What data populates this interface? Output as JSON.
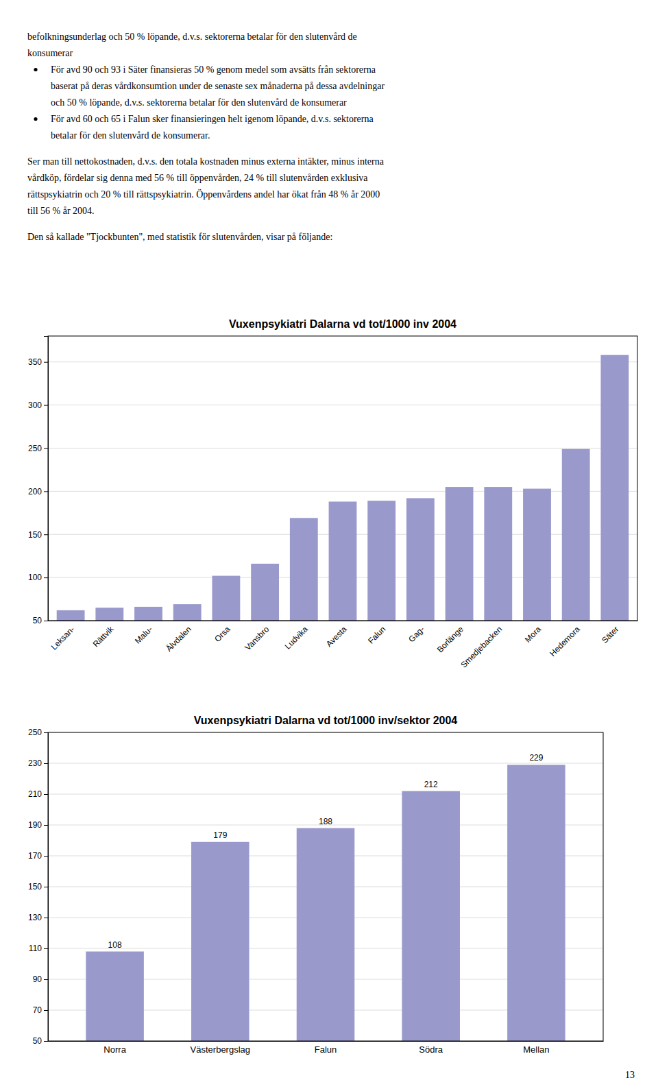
{
  "text": [
    {
      "type": "paragraph",
      "lines": [
        "befolkningsunderlag och 50 % löpande, d.v.s. sektorerna betalar för den slutenvård de",
        "konsumerar"
      ]
    },
    {
      "type": "bullet",
      "lines": [
        "För avd 90 och 93 i Säter finansieras 50 % genom medel som avsätts från sektorerna",
        "baserat på deras vårdkonsumtion under de senaste sex månaderna på dessa avdelningar",
        "och 50 % löpande, d.v.s. sektorerna betalar för den slutenvård de konsumerar"
      ]
    },
    {
      "type": "bullet",
      "lines": [
        "För avd 60 och 65 i Falun sker finansieringen helt igenom löpande, d.v.s. sektorerna",
        "betalar för den slutenvård de konsumerar."
      ]
    },
    {
      "type": "paragraph",
      "lines": [
        "Ser man till nettokostnaden, d.v.s. den totala kostnaden minus externa intäkter, minus interna",
        "vårdköp, fördelar sig denna med 56 % till öppenvården, 24 % till slutenvården exklusiva",
        "rättspsykiatrin och 20 % till rättspsykiatrin. Öppenvårdens andel har ökat från 48 % år 2000",
        "till 56 % år 2004."
      ]
    },
    {
      "type": "paragraph",
      "lines": [
        "Den så kallade \"Tjockbunten\", med statistik för slutenvården, visar på följande:"
      ]
    }
  ],
  "chart_data": [
    {
      "type": "bar",
      "title": "Vuxenpsykiatri Dalarna  vd tot/1000 inv  2004",
      "categories": [
        "Leksan-",
        "Rättvik",
        "Malu-",
        "Älvdalen",
        "Orsa",
        "Vansbro",
        "Ludvika",
        "Avesta",
        "Falun",
        "Gag-",
        "Borlänge",
        "Smedjebacken",
        "Mora",
        "Hedemora",
        "Säter"
      ],
      "values": [
        62,
        65,
        66,
        69,
        102,
        116,
        169,
        188,
        189,
        192,
        205,
        205,
        203,
        249,
        358
      ],
      "color": "#9999cc",
      "ylim": [
        50,
        380
      ],
      "yticks": [
        50,
        100,
        150,
        200,
        250,
        300,
        350
      ],
      "grid": true
    },
    {
      "type": "bar",
      "title": "Vuxenpsykiatri Dalarna  vd tot/1000 inv/sektor  2004",
      "categories": [
        "Norra",
        "Västerbergslag",
        "Falun",
        "Södra",
        "Mellan"
      ],
      "values": [
        108,
        179,
        188,
        212,
        229
      ],
      "color": "#9999cc",
      "ylim": [
        50,
        250
      ],
      "yticks": [
        50,
        70,
        90,
        110,
        130,
        150,
        170,
        190,
        210,
        230,
        250
      ],
      "grid": true,
      "data_labels": true
    }
  ],
  "page_number": "13"
}
